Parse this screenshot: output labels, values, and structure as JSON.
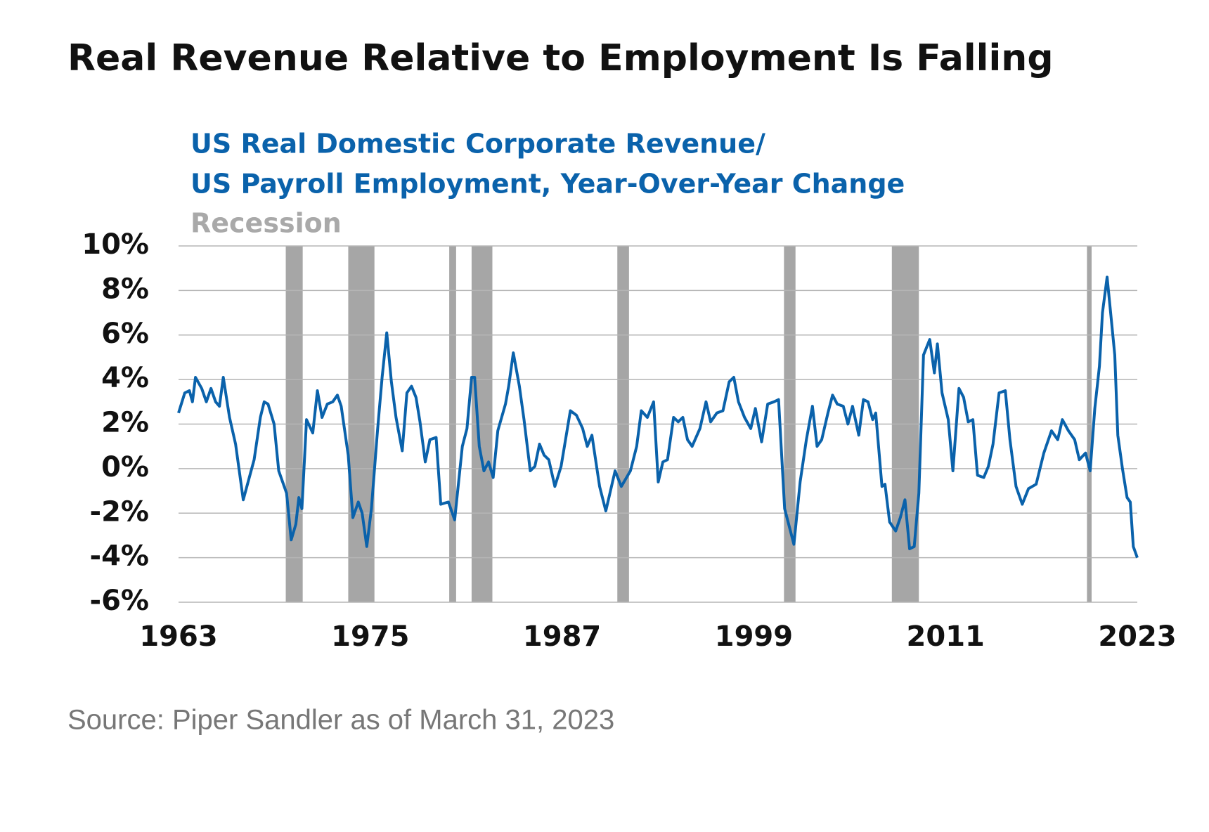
{
  "chart_data": {
    "type": "line",
    "title": "Real Revenue Relative to Employment Is Falling",
    "subtitle": [
      "US Real Domestic Corporate Revenue/",
      "US Payroll Employment, Year-Over-Year Change"
    ],
    "recession": {
      "name": "Recession",
      "color": "#a6a6a6",
      "periods": [
        [
          1969.71,
          1970.77
        ],
        [
          1973.62,
          1975.26
        ],
        [
          1979.94,
          1980.37
        ],
        [
          1981.34,
          1982.64
        ],
        [
          1990.46,
          1991.19
        ],
        [
          2000.89,
          2001.61
        ],
        [
          2007.64,
          2009.33
        ],
        [
          2019.85,
          2020.14
        ]
      ]
    },
    "source": "Source: Piper Sandler as of March 31, 2023",
    "xlim": [
      1963,
      2023
    ],
    "xticks": [
      1963,
      1975,
      1987,
      1999,
      2011,
      2023
    ],
    "ylim": [
      -6,
      10
    ],
    "yticks": [
      {
        "value": -6,
        "label": "-6%"
      },
      {
        "value": -4,
        "label": "-4%"
      },
      {
        "value": -2,
        "label": "-2%"
      },
      {
        "value": 0,
        "label": "0%"
      },
      {
        "value": 2,
        "label": "2%"
      },
      {
        "value": 4,
        "label": "4%"
      },
      {
        "value": 6,
        "label": "6%"
      },
      {
        "value": 8,
        "label": "8%"
      },
      {
        "value": 10,
        "label": "10%"
      }
    ],
    "grid": true,
    "series": [
      {
        "color": "#0a62ab",
        "x": [
          1963.0,
          1963.39,
          1963.68,
          1963.87,
          1964.06,
          1964.45,
          1964.74,
          1965.03,
          1965.32,
          1965.56,
          1965.8,
          1966.19,
          1966.57,
          1967.05,
          1967.73,
          1968.12,
          1968.36,
          1968.6,
          1968.98,
          1969.27,
          1969.76,
          1970.05,
          1970.34,
          1970.53,
          1970.72,
          1971.01,
          1971.4,
          1971.69,
          1971.98,
          1972.31,
          1972.65,
          1972.94,
          1973.18,
          1973.62,
          1973.91,
          1974.25,
          1974.49,
          1974.78,
          1975.07,
          1975.45,
          1975.74,
          1976.03,
          1976.32,
          1976.61,
          1977.0,
          1977.29,
          1977.58,
          1977.86,
          1978.11,
          1978.44,
          1978.73,
          1979.12,
          1979.41,
          1979.89,
          1980.28,
          1980.76,
          1981.05,
          1981.34,
          1981.53,
          1981.82,
          1982.11,
          1982.4,
          1982.69,
          1982.98,
          1983.46,
          1983.66,
          1983.95,
          1984.33,
          1984.62,
          1985.01,
          1985.3,
          1985.59,
          1985.88,
          1986.17,
          1986.55,
          1986.94,
          1987.52,
          1987.9,
          1988.29,
          1988.58,
          1988.87,
          1989.35,
          1989.74,
          1990.32,
          1990.71,
          1991.28,
          1991.67,
          1991.96,
          1992.34,
          1992.73,
          1993.02,
          1993.31,
          1993.6,
          1993.98,
          1994.27,
          1994.56,
          1994.85,
          1995.14,
          1995.63,
          1996.01,
          1996.3,
          1996.69,
          1997.07,
          1997.46,
          1997.75,
          1998.04,
          1998.42,
          1998.81,
          1999.1,
          1999.49,
          1999.87,
          2000.26,
          2000.55,
          2000.93,
          2001.51,
          2001.9,
          2002.29,
          2002.67,
          2002.96,
          2003.25,
          2003.64,
          2003.93,
          2004.22,
          2004.6,
          2004.89,
          2005.18,
          2005.57,
          2005.86,
          2006.15,
          2006.44,
          2006.63,
          2007.02,
          2007.21,
          2007.5,
          2007.88,
          2008.17,
          2008.46,
          2008.75,
          2009.04,
          2009.33,
          2009.62,
          2010.01,
          2010.3,
          2010.49,
          2010.78,
          2011.17,
          2011.46,
          2011.84,
          2012.13,
          2012.42,
          2012.71,
          2013.0,
          2013.39,
          2013.68,
          2013.97,
          2014.35,
          2014.74,
          2015.03,
          2015.41,
          2015.8,
          2016.19,
          2016.67,
          2017.15,
          2017.63,
          2018.02,
          2018.31,
          2018.69,
          2019.08,
          2019.37,
          2019.76,
          2020.05,
          2020.34,
          2020.63,
          2020.82,
          2021.11,
          2021.4,
          2021.59,
          2021.78,
          2022.07,
          2022.36,
          2022.56,
          2022.75,
          2023.0
        ],
        "values": [
          2.5,
          3.4,
          3.5,
          3.0,
          4.1,
          3.6,
          3.0,
          3.6,
          3.0,
          2.8,
          4.1,
          2.3,
          1.1,
          -1.4,
          0.4,
          2.3,
          3.0,
          2.9,
          2.0,
          -0.1,
          -1.1,
          -3.2,
          -2.5,
          -1.3,
          -1.8,
          2.2,
          1.6,
          3.5,
          2.3,
          2.9,
          3.0,
          3.3,
          2.8,
          0.6,
          -2.2,
          -1.5,
          -2.0,
          -3.5,
          -1.8,
          1.7,
          4.1,
          6.1,
          3.9,
          2.3,
          0.8,
          3.4,
          3.7,
          3.2,
          2.1,
          0.3,
          1.3,
          1.4,
          -1.6,
          -1.5,
          -2.3,
          1.0,
          1.8,
          4.1,
          4.1,
          1.0,
          -0.1,
          0.3,
          -0.4,
          1.7,
          2.9,
          3.7,
          5.2,
          3.7,
          2.2,
          -0.1,
          0.1,
          1.1,
          0.6,
          0.4,
          -0.8,
          0.1,
          2.6,
          2.4,
          1.8,
          1.0,
          1.5,
          -0.8,
          -1.9,
          -0.1,
          -0.8,
          -0.1,
          1.0,
          2.6,
          2.3,
          3.0,
          -0.6,
          0.3,
          0.4,
          2.3,
          2.1,
          2.3,
          1.3,
          1.0,
          1.8,
          3.0,
          2.1,
          2.5,
          2.6,
          3.9,
          4.1,
          3.0,
          2.3,
          1.8,
          2.7,
          1.2,
          2.9,
          3.0,
          3.1,
          -1.8,
          -3.4,
          -0.6,
          1.3,
          2.8,
          1.0,
          1.3,
          2.5,
          3.3,
          2.9,
          2.8,
          2.0,
          2.8,
          1.5,
          3.1,
          3.0,
          2.2,
          2.5,
          -0.8,
          -0.7,
          -2.4,
          -2.8,
          -2.2,
          -1.4,
          -3.6,
          -3.5,
          -1.1,
          5.1,
          5.8,
          4.3,
          5.6,
          3.4,
          2.2,
          -0.1,
          3.6,
          3.2,
          2.1,
          2.2,
          -0.3,
          -0.4,
          0.1,
          1.1,
          3.4,
          3.5,
          1.3,
          -0.8,
          -1.6,
          -0.9,
          -0.7,
          0.7,
          1.7,
          1.3,
          2.2,
          1.7,
          1.3,
          0.4,
          0.7,
          -0.1,
          2.7,
          4.6,
          7.0,
          8.6,
          6.5,
          5.1,
          1.5,
          0.0,
          -1.3,
          -1.5,
          -3.5,
          -4.0
        ]
      }
    ]
  }
}
